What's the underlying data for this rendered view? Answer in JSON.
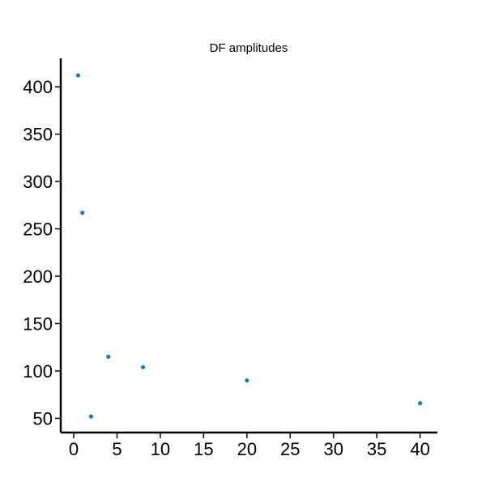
{
  "chart_data": {
    "type": "scatter",
    "title": "DF amplitudes",
    "xlabel": "",
    "ylabel": "",
    "x": [
      0.5,
      1,
      2,
      4,
      8,
      20,
      40
    ],
    "y": [
      412,
      267,
      52,
      115,
      104,
      90,
      66
    ],
    "xlim": [
      -1.5,
      42
    ],
    "ylim": [
      35,
      430
    ],
    "xticks": [
      0,
      5,
      10,
      15,
      20,
      25,
      30,
      35,
      40
    ],
    "yticks": [
      50,
      100,
      150,
      200,
      250,
      300,
      350,
      400
    ],
    "grid": false,
    "marker_color": "#1f77b4"
  }
}
